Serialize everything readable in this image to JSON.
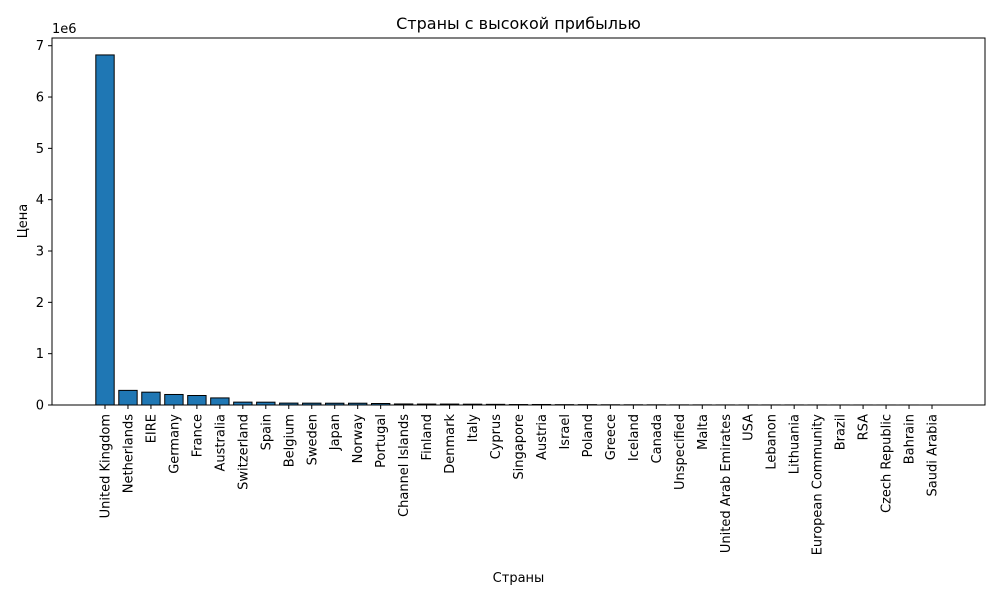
{
  "chart_data": {
    "type": "bar",
    "title": "Страны с высокой прибылью",
    "xlabel": "Страны",
    "ylabel": "Цена",
    "y_multiplier_label": "1e6",
    "ylim": [
      0,
      7150000
    ],
    "yticks": [
      0,
      1000000,
      2000000,
      3000000,
      4000000,
      5000000,
      6000000,
      7000000
    ],
    "ytick_labels": [
      "0",
      "1",
      "2",
      "3",
      "4",
      "5",
      "6",
      "7"
    ],
    "grid": false,
    "bar_color": "#1f77b4",
    "bar_edge_color": "#000000",
    "categories": [
      "United Kingdom",
      "Netherlands",
      "EIRE",
      "Germany",
      "France",
      "Australia",
      "Switzerland",
      "Spain",
      "Belgium",
      "Sweden",
      "Japan",
      "Norway",
      "Portugal",
      "Channel Islands",
      "Finland",
      "Denmark",
      "Italy",
      "Cyprus",
      "Singapore",
      "Austria",
      "Israel",
      "Poland",
      "Greece",
      "Iceland",
      "Canada",
      "Unspecified",
      "Malta",
      "United Arab Emirates",
      "USA",
      "Lebanon",
      "Lithuania",
      "European Community",
      "Brazil",
      "RSA",
      "Czech Republic",
      "Bahrain",
      "Saudi Arabia"
    ],
    "values": [
      6820000,
      285000,
      250000,
      205000,
      185000,
      138000,
      56000,
      55000,
      37000,
      36000,
      35000,
      35000,
      29000,
      20000,
      18000,
      18000,
      16000,
      13000,
      9000,
      10000,
      7000,
      7000,
      4600,
      4300,
      3700,
      2700,
      2500,
      1900,
      1700,
      1700,
      1700,
      1300,
      1100,
      1000,
      700,
      550,
      130
    ]
  }
}
